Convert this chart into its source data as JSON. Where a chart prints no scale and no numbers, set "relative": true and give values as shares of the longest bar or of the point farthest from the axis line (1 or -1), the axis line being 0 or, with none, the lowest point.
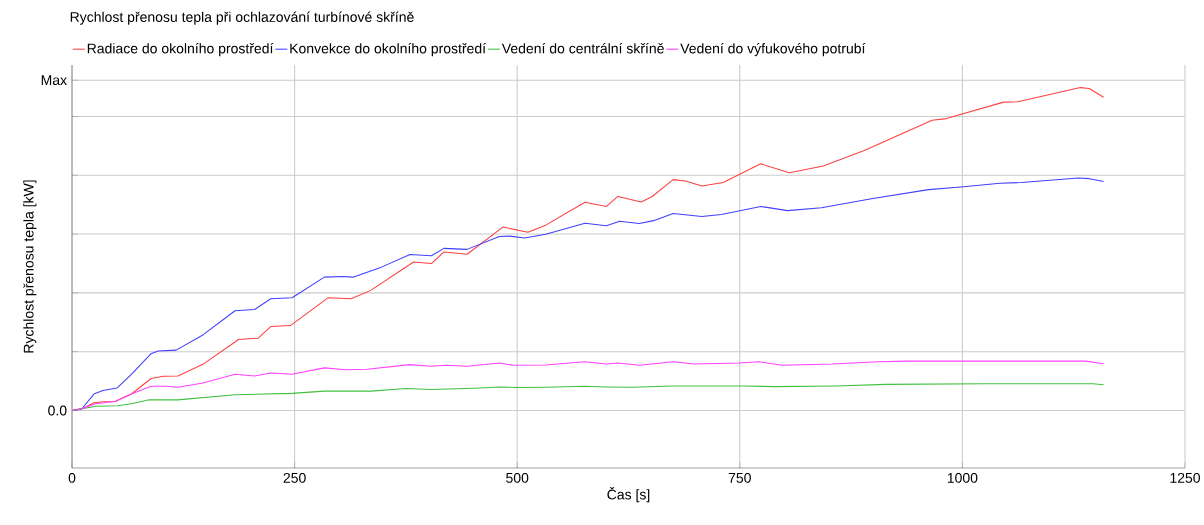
{
  "chart_data": {
    "type": "line",
    "relative": true,
    "title": "Rychlost přenosu tepla při ochlazování turbínové skříně",
    "xlabel": "Čas [s]",
    "ylabel": "Rychlost přenosu tepla [kW]",
    "xlim": [
      0,
      1250
    ],
    "xticks": [
      0,
      250,
      500,
      750,
      1000,
      1250
    ],
    "annotations": [
      "0.0",
      "Max"
    ],
    "grid": true,
    "legend": "top left",
    "series": [
      {
        "name": "Radiace do okolního prostředí",
        "color": "#ff4040",
        "x": [
          0,
          12.6,
          24.6,
          34.7,
          48.3,
          66.7,
          88.8,
          102.9,
          118.9,
          147,
          187.1,
          209.1,
          223.2,
          245.3,
          287.4,
          313.5,
          335.5,
          383.6,
          403.6,
          417.7,
          443.7,
          483.9,
          512,
          532,
          576.1,
          600.2,
          613.1,
          639.2,
          651.2,
          675.2,
          689.2,
          707.3,
          731.4,
          773.5,
          805.6,
          843.7,
          889.8,
          966,
          982,
          1046.2,
          1062.3,
          1132.5,
          1142.5,
          1158.6
        ],
        "values": [
          0,
          0.007,
          0.024,
          0.027,
          0.028,
          0.051,
          0.099,
          0.106,
          0.107,
          0.143,
          0.22,
          0.224,
          0.26,
          0.263,
          0.349,
          0.346,
          0.372,
          0.46,
          0.455,
          0.491,
          0.484,
          0.568,
          0.552,
          0.574,
          0.645,
          0.632,
          0.663,
          0.646,
          0.662,
          0.715,
          0.711,
          0.695,
          0.706,
          0.764,
          0.736,
          0.757,
          0.805,
          0.899,
          0.904,
          0.955,
          0.956,
          1,
          0.997,
          0.97
        ]
      },
      {
        "name": "Konvekce do okolního prostředí",
        "color": "#4040ff",
        "x": [
          0,
          10.6,
          24.6,
          34.7,
          50.7,
          66.7,
          88.8,
          96.8,
          116.9,
          147,
          183.1,
          205.1,
          223.2,
          247.2,
          283.4,
          303.4,
          315.5,
          347.5,
          379.6,
          403.6,
          417.7,
          443.7,
          479.9,
          491.9,
          508,
          532,
          576.1,
          600.2,
          615,
          637.1,
          653.2,
          675.2,
          707.3,
          729.4,
          773.5,
          803.6,
          841.7,
          897.8,
          962,
          998.1,
          1042.2,
          1066.3,
          1130.4,
          1142.5,
          1158.6
        ],
        "values": [
          0,
          0.004,
          0.051,
          0.062,
          0.07,
          0.112,
          0.176,
          0.184,
          0.187,
          0.234,
          0.309,
          0.313,
          0.346,
          0.349,
          0.413,
          0.415,
          0.413,
          0.444,
          0.483,
          0.479,
          0.502,
          0.499,
          0.539,
          0.54,
          0.534,
          0.546,
          0.58,
          0.572,
          0.586,
          0.579,
          0.588,
          0.61,
          0.601,
          0.607,
          0.632,
          0.619,
          0.628,
          0.656,
          0.684,
          0.692,
          0.704,
          0.706,
          0.72,
          0.718,
          0.709
        ]
      },
      {
        "name": "Vedení do centrální skříně",
        "color": "#40c040",
        "x": [
          0,
          14.6,
          26.6,
          50.7,
          66.7,
          86.8,
          118.9,
          183.1,
          247.2,
          283.4,
          335.5,
          375.6,
          403.6,
          451.8,
          479.9,
          500,
          532,
          576.1,
          600.2,
          629,
          675.2,
          753.5,
          789.5,
          857.7,
          913.9,
          1026.2,
          1146.6,
          1158.6
        ],
        "values": [
          0,
          0.007,
          0.013,
          0.015,
          0.021,
          0.033,
          0.033,
          0.049,
          0.053,
          0.06,
          0.06,
          0.068,
          0.065,
          0.069,
          0.073,
          0.071,
          0.072,
          0.075,
          0.073,
          0.072,
          0.076,
          0.076,
          0.074,
          0.076,
          0.081,
          0.083,
          0.083,
          0.08
        ]
      },
      {
        "name": "Vedení do výfukového potrubí",
        "color": "#ff40ff",
        "x": [
          0,
          12.6,
          26.6,
          48.3,
          66.7,
          88.8,
          106.8,
          118.9,
          147,
          183.1,
          205.1,
          223.2,
          247.2,
          283.4,
          307.4,
          331.5,
          379.6,
          403.6,
          419.7,
          443.7,
          479.9,
          496,
          532,
          576.1,
          600.2,
          613.1,
          637.1,
          675.2,
          699.3,
          749.4,
          771.5,
          797.5,
          853.7,
          905.9,
          937.9,
          998.1,
          1138.5,
          1158.6
        ],
        "values": [
          0,
          0.007,
          0.021,
          0.028,
          0.051,
          0.075,
          0.075,
          0.072,
          0.085,
          0.112,
          0.107,
          0.116,
          0.112,
          0.132,
          0.126,
          0.128,
          0.142,
          0.137,
          0.14,
          0.137,
          0.147,
          0.14,
          0.141,
          0.151,
          0.144,
          0.147,
          0.14,
          0.151,
          0.144,
          0.147,
          0.151,
          0.14,
          0.144,
          0.151,
          0.153,
          0.153,
          0.153,
          0.145
        ]
      }
    ]
  }
}
